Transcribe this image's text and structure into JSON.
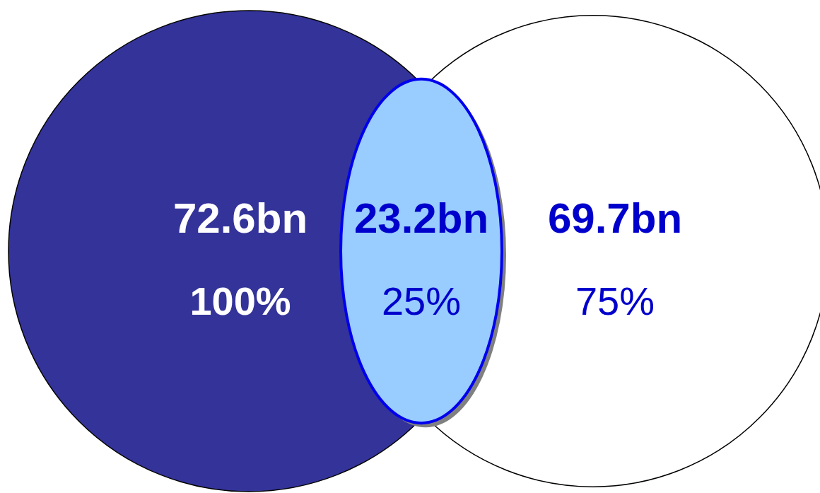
{
  "chart_data": {
    "type": "other",
    "colors": [
      "#333399",
      "#99ccff",
      "#ffffff"
    ],
    "series": [
      {
        "color": "#0000cc",
        "values": [
          72.6,
          23.2,
          69.7
        ],
        "value_labels": [
          "72.6bn",
          "23.2bn",
          "69.7bn"
        ]
      }
    ],
    "annotations": [
      "100%",
      "25%",
      "75%"
    ]
  }
}
